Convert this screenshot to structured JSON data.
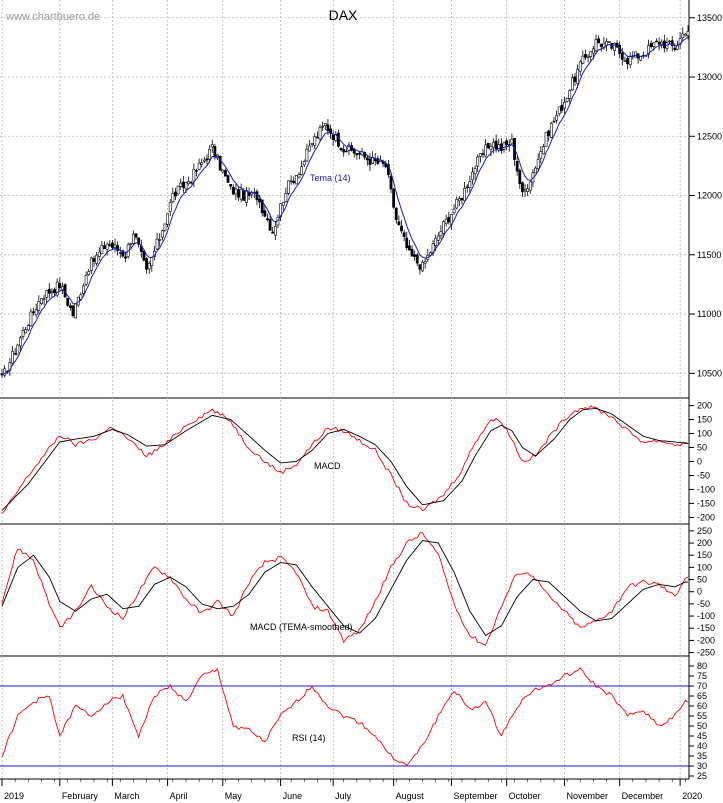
{
  "chart_data": [
    {
      "type": "candlestick",
      "title": "DAX",
      "watermark": "www.chartbuero.de",
      "overlay_label": "Tema (14)",
      "ylim": [
        10300,
        13650
      ],
      "y_ticks": [
        10500,
        11000,
        11500,
        12000,
        12500,
        13000,
        13500
      ],
      "x_labels": [
        "2019",
        "February",
        "March",
        "April",
        "May",
        "June",
        "July",
        "August",
        "September",
        "October",
        "November",
        "December",
        "2020"
      ],
      "close_anchors": [
        [
          0,
          10450
        ],
        [
          8,
          10850
        ],
        [
          15,
          11150
        ],
        [
          22,
          11250
        ],
        [
          27,
          11000
        ],
        [
          33,
          11400
        ],
        [
          40,
          11600
        ],
        [
          47,
          11500
        ],
        [
          50,
          11700
        ],
        [
          55,
          11350
        ],
        [
          60,
          11650
        ],
        [
          65,
          12000
        ],
        [
          72,
          12150
        ],
        [
          80,
          12400
        ],
        [
          87,
          12050
        ],
        [
          92,
          12000
        ],
        [
          97,
          12000
        ],
        [
          103,
          11700
        ],
        [
          108,
          12050
        ],
        [
          114,
          12250
        ],
        [
          118,
          12450
        ],
        [
          123,
          12600
        ],
        [
          130,
          12400
        ],
        [
          136,
          12350
        ],
        [
          140,
          12300
        ],
        [
          146,
          12250
        ],
        [
          150,
          11800
        ],
        [
          155,
          11500
        ],
        [
          160,
          11400
        ],
        [
          168,
          11750
        ],
        [
          175,
          12000
        ],
        [
          180,
          12250
        ],
        [
          186,
          12450
        ],
        [
          190,
          12400
        ],
        [
          194,
          12450
        ],
        [
          198,
          12000
        ],
        [
          202,
          12200
        ],
        [
          208,
          12550
        ],
        [
          214,
          12800
        ],
        [
          220,
          13100
        ],
        [
          226,
          13300
        ],
        [
          233,
          13250
        ],
        [
          238,
          13150
        ],
        [
          244,
          13200
        ],
        [
          250,
          13300
        ],
        [
          256,
          13250
        ],
        [
          260,
          13400
        ]
      ],
      "colors": {
        "candle": "#000000",
        "tema": "#1a1acc"
      }
    },
    {
      "type": "line",
      "label": "MACD",
      "ylim": [
        -220,
        220
      ],
      "y_ticks": [
        200,
        150,
        100,
        50,
        0,
        -50,
        -100,
        -150,
        -200
      ],
      "series": [
        {
          "color": "#ff0000",
          "anchors": [
            [
              0,
              -190
            ],
            [
              10,
              -50
            ],
            [
              22,
              95
            ],
            [
              28,
              60
            ],
            [
              35,
              80
            ],
            [
              42,
              125
            ],
            [
              48,
              80
            ],
            [
              55,
              20
            ],
            [
              62,
              60
            ],
            [
              70,
              130
            ],
            [
              80,
              185
            ],
            [
              87,
              145
            ],
            [
              93,
              60
            ],
            [
              100,
              0
            ],
            [
              106,
              -40
            ],
            [
              112,
              -10
            ],
            [
              118,
              60
            ],
            [
              124,
              120
            ],
            [
              130,
              110
            ],
            [
              136,
              75
            ],
            [
              142,
              40
            ],
            [
              148,
              -50
            ],
            [
              154,
              -150
            ],
            [
              160,
              -175
            ],
            [
              168,
              -120
            ],
            [
              175,
              -30
            ],
            [
              180,
              70
            ],
            [
              186,
              150
            ],
            [
              190,
              145
            ],
            [
              194,
              80
            ],
            [
              198,
              0
            ],
            [
              203,
              20
            ],
            [
              210,
              110
            ],
            [
              216,
              170
            ],
            [
              221,
              195
            ],
            [
              226,
              190
            ],
            [
              232,
              160
            ],
            [
              238,
              110
            ],
            [
              244,
              70
            ],
            [
              250,
              75
            ],
            [
              256,
              60
            ],
            [
              260,
              65
            ]
          ]
        },
        {
          "color": "#000000",
          "anchors": [
            [
              0,
              -175
            ],
            [
              10,
              -80
            ],
            [
              22,
              70
            ],
            [
              28,
              80
            ],
            [
              35,
              90
            ],
            [
              42,
              115
            ],
            [
              48,
              95
            ],
            [
              55,
              55
            ],
            [
              62,
              60
            ],
            [
              70,
              110
            ],
            [
              80,
              165
            ],
            [
              87,
              150
            ],
            [
              93,
              100
            ],
            [
              100,
              40
            ],
            [
              106,
              -5
            ],
            [
              112,
              0
            ],
            [
              118,
              40
            ],
            [
              124,
              100
            ],
            [
              130,
              115
            ],
            [
              136,
              90
            ],
            [
              142,
              60
            ],
            [
              148,
              0
            ],
            [
              154,
              -90
            ],
            [
              160,
              -155
            ],
            [
              168,
              -140
            ],
            [
              175,
              -70
            ],
            [
              180,
              20
            ],
            [
              186,
              110
            ],
            [
              190,
              130
            ],
            [
              194,
              110
            ],
            [
              198,
              50
            ],
            [
              203,
              20
            ],
            [
              210,
              80
            ],
            [
              216,
              150
            ],
            [
              221,
              185
            ],
            [
              226,
              190
            ],
            [
              232,
              170
            ],
            [
              238,
              130
            ],
            [
              244,
              90
            ],
            [
              250,
              75
            ],
            [
              256,
              70
            ],
            [
              260,
              65
            ]
          ]
        }
      ]
    },
    {
      "type": "line",
      "label": "MACD (TEMA-smoothed)",
      "ylim": [
        -260,
        270
      ],
      "y_ticks": [
        250,
        200,
        150,
        100,
        50,
        0,
        -50,
        -100,
        -150,
        -200,
        -250
      ],
      "series": [
        {
          "color": "#ff0000",
          "anchors": [
            [
              0,
              -40
            ],
            [
              6,
              180
            ],
            [
              12,
              130
            ],
            [
              18,
              -50
            ],
            [
              22,
              -150
            ],
            [
              28,
              -80
            ],
            [
              34,
              20
            ],
            [
              40,
              -60
            ],
            [
              46,
              -110
            ],
            [
              52,
              0
            ],
            [
              58,
              100
            ],
            [
              64,
              60
            ],
            [
              70,
              -30
            ],
            [
              76,
              -90
            ],
            [
              82,
              -40
            ],
            [
              88,
              -100
            ],
            [
              94,
              40
            ],
            [
              100,
              120
            ],
            [
              106,
              140
            ],
            [
              112,
              80
            ],
            [
              118,
              -60
            ],
            [
              124,
              -80
            ],
            [
              130,
              -200
            ],
            [
              136,
              -160
            ],
            [
              142,
              -40
            ],
            [
              148,
              100
            ],
            [
              154,
              200
            ],
            [
              160,
              240
            ],
            [
              166,
              150
            ],
            [
              172,
              -50
            ],
            [
              178,
              -180
            ],
            [
              184,
              -220
            ],
            [
              190,
              -60
            ],
            [
              196,
              80
            ],
            [
              202,
              70
            ],
            [
              208,
              -20
            ],
            [
              214,
              -80
            ],
            [
              220,
              -150
            ],
            [
              226,
              -120
            ],
            [
              232,
              -80
            ],
            [
              238,
              20
            ],
            [
              244,
              40
            ],
            [
              250,
              30
            ],
            [
              256,
              -20
            ],
            [
              260,
              60
            ]
          ]
        },
        {
          "color": "#000000",
          "anchors": [
            [
              0,
              -60
            ],
            [
              6,
              100
            ],
            [
              12,
              150
            ],
            [
              18,
              60
            ],
            [
              22,
              -40
            ],
            [
              28,
              -80
            ],
            [
              34,
              -30
            ],
            [
              40,
              -10
            ],
            [
              46,
              -70
            ],
            [
              52,
              -60
            ],
            [
              58,
              30
            ],
            [
              64,
              60
            ],
            [
              70,
              20
            ],
            [
              76,
              -50
            ],
            [
              82,
              -70
            ],
            [
              88,
              -60
            ],
            [
              94,
              -10
            ],
            [
              100,
              80
            ],
            [
              106,
              120
            ],
            [
              112,
              110
            ],
            [
              118,
              20
            ],
            [
              124,
              -60
            ],
            [
              130,
              -140
            ],
            [
              136,
              -170
            ],
            [
              142,
              -110
            ],
            [
              148,
              10
            ],
            [
              154,
              130
            ],
            [
              160,
              210
            ],
            [
              166,
              200
            ],
            [
              172,
              80
            ],
            [
              178,
              -80
            ],
            [
              184,
              -180
            ],
            [
              190,
              -140
            ],
            [
              196,
              -20
            ],
            [
              202,
              50
            ],
            [
              208,
              40
            ],
            [
              214,
              -20
            ],
            [
              220,
              -80
            ],
            [
              226,
              -120
            ],
            [
              232,
              -110
            ],
            [
              238,
              -50
            ],
            [
              244,
              10
            ],
            [
              250,
              30
            ],
            [
              256,
              20
            ],
            [
              260,
              40
            ]
          ]
        }
      ]
    },
    {
      "type": "line",
      "label": "RSI (14)",
      "ylim": [
        24,
        84
      ],
      "y_ticks": [
        80,
        75,
        70,
        65,
        60,
        55,
        50,
        45,
        40,
        35,
        30,
        25
      ],
      "reference_lines": [
        70,
        30
      ],
      "series": [
        {
          "color": "#ff0000",
          "anchors": [
            [
              0,
              35
            ],
            [
              6,
              55
            ],
            [
              12,
              62
            ],
            [
              18,
              65
            ],
            [
              22,
              45
            ],
            [
              28,
              60
            ],
            [
              34,
              55
            ],
            [
              40,
              62
            ],
            [
              46,
              65
            ],
            [
              52,
              45
            ],
            [
              58,
              65
            ],
            [
              64,
              70
            ],
            [
              70,
              62
            ],
            [
              76,
              75
            ],
            [
              82,
              78
            ],
            [
              88,
              50
            ],
            [
              94,
              48
            ],
            [
              100,
              42
            ],
            [
              106,
              55
            ],
            [
              112,
              62
            ],
            [
              118,
              70
            ],
            [
              124,
              60
            ],
            [
              130,
              55
            ],
            [
              136,
              52
            ],
            [
              142,
              45
            ],
            [
              148,
              35
            ],
            [
              154,
              30
            ],
            [
              160,
              40
            ],
            [
              166,
              55
            ],
            [
              172,
              68
            ],
            [
              178,
              58
            ],
            [
              184,
              62
            ],
            [
              190,
              45
            ],
            [
              196,
              60
            ],
            [
              202,
              68
            ],
            [
              208,
              70
            ],
            [
              214,
              75
            ],
            [
              220,
              78
            ],
            [
              226,
              70
            ],
            [
              232,
              65
            ],
            [
              238,
              55
            ],
            [
              244,
              58
            ],
            [
              250,
              50
            ],
            [
              256,
              55
            ],
            [
              260,
              62
            ]
          ]
        }
      ]
    }
  ]
}
